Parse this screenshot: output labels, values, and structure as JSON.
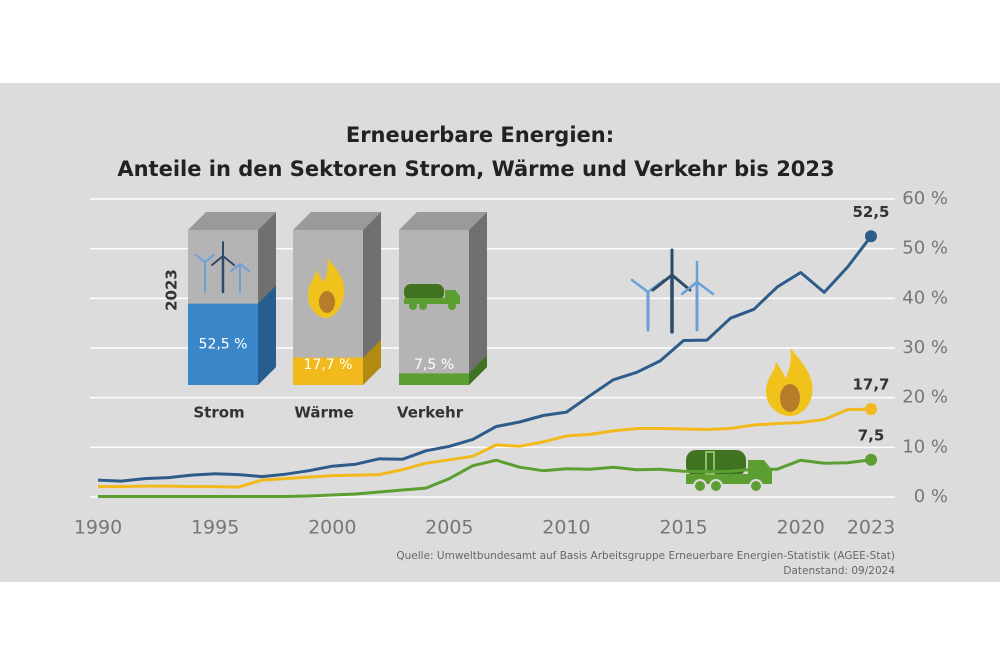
{
  "chart_data": {
    "type": "line",
    "title": [
      "Erneuerbare Energien:",
      "Anteile in den Sektoren Strom, Wärme und Verkehr bis 2023"
    ],
    "x": [
      1990,
      1991,
      1992,
      1993,
      1994,
      1995,
      1996,
      1997,
      1998,
      1999,
      2000,
      2001,
      2002,
      2003,
      2004,
      2005,
      2006,
      2007,
      2008,
      2009,
      2010,
      2011,
      2012,
      2013,
      2014,
      2015,
      2016,
      2017,
      2018,
      2019,
      2020,
      2021,
      2022,
      2023
    ],
    "xlim": [
      1990,
      2023
    ],
    "xticks": [
      1990,
      1995,
      2000,
      2005,
      2010,
      2015,
      2020,
      2023
    ],
    "ylim": [
      0,
      60
    ],
    "yticks": [
      {
        "value": 0,
        "label": "0 %"
      },
      {
        "value": 10,
        "label": "10 %"
      },
      {
        "value": 20,
        "label": "20 %"
      },
      {
        "value": 30,
        "label": "30 %"
      },
      {
        "value": 40,
        "label": "40 %"
      },
      {
        "value": 50,
        "label": "50 %"
      },
      {
        "value": 60,
        "label": "60 %"
      }
    ],
    "grid": true,
    "series": [
      {
        "name": "Strom",
        "color": "#2e5c8a",
        "values": [
          3.4,
          3.2,
          3.7,
          3.9,
          4.4,
          4.7,
          4.5,
          4.1,
          4.6,
          5.3,
          6.2,
          6.6,
          7.7,
          7.6,
          9.3,
          10.2,
          11.6,
          14.2,
          15.1,
          16.4,
          17.1,
          20.4,
          23.6,
          25.1,
          27.4,
          31.5,
          31.6,
          36.0,
          37.8,
          42.3,
          45.2,
          41.2,
          46.3,
          52.5
        ],
        "value_labels": [
          null,
          null,
          null,
          null,
          null,
          null,
          null,
          null,
          null,
          null,
          null,
          null,
          null,
          null,
          null,
          null,
          null,
          null,
          null,
          null,
          null,
          null,
          null,
          null,
          null,
          null,
          null,
          null,
          null,
          null,
          null,
          null,
          null,
          "52,5"
        ]
      },
      {
        "name": "Wärme",
        "color": "#f2b91c",
        "values": [
          2.1,
          2.1,
          2.2,
          2.2,
          2.1,
          2.1,
          2.0,
          3.4,
          3.7,
          4.0,
          4.3,
          4.4,
          4.5,
          5.5,
          6.8,
          7.5,
          8.2,
          10.5,
          10.2,
          11.1,
          12.3,
          12.6,
          13.3,
          13.8,
          13.8,
          13.7,
          13.6,
          13.8,
          14.5,
          14.8,
          15.0,
          15.6,
          17.6,
          17.7
        ],
        "value_labels": [
          null,
          null,
          null,
          null,
          null,
          null,
          null,
          null,
          null,
          null,
          null,
          null,
          null,
          null,
          null,
          null,
          null,
          null,
          null,
          null,
          null,
          null,
          null,
          null,
          null,
          null,
          null,
          null,
          null,
          null,
          null,
          null,
          null,
          "17,7"
        ]
      },
      {
        "name": "Verkehr",
        "color": "#5c9e31",
        "values": [
          0.1,
          0.1,
          0.1,
          0.1,
          0.1,
          0.1,
          0.1,
          0.1,
          0.1,
          0.2,
          0.4,
          0.6,
          1.0,
          1.4,
          1.8,
          3.7,
          6.3,
          7.4,
          6.0,
          5.3,
          5.7,
          5.6,
          6.0,
          5.5,
          5.6,
          5.2,
          5.1,
          5.2,
          5.6,
          5.6,
          7.4,
          6.8,
          6.9,
          7.5
        ],
        "value_labels": [
          null,
          null,
          null,
          null,
          null,
          null,
          null,
          null,
          null,
          null,
          null,
          null,
          null,
          null,
          null,
          null,
          null,
          null,
          null,
          null,
          null,
          null,
          null,
          null,
          null,
          null,
          null,
          null,
          null,
          null,
          null,
          null,
          null,
          "7,5"
        ]
      }
    ],
    "inset": {
      "year": "2023",
      "values": [
        52.5,
        17.7,
        7.5
      ],
      "value_labels": [
        "52,5 %",
        "17,7 %",
        "7,5 %"
      ],
      "colors": [
        "#3a86c8",
        "#f2b91c",
        "#5c9e31"
      ],
      "side_colors": [
        "#255e8f",
        "#b08a12",
        "#3f7322"
      ]
    },
    "source": [
      "Quelle: Umweltbundesamt auf Basis Arbeitsgruppe Erneuerbare Energien-Statistik (AGEE-Stat)",
      "Datenstand: 09/2024"
    ]
  }
}
